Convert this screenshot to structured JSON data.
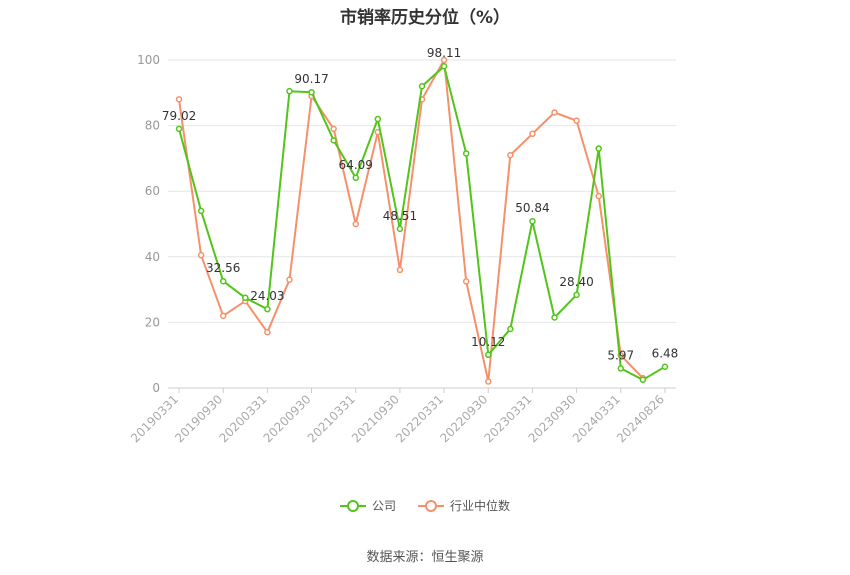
{
  "title": "市销率历史分位（%）",
  "source": "数据来源：恒生聚源",
  "colors": {
    "company": "#52c41a",
    "industry": "#f5916a",
    "grid": "#e6e6e6",
    "axis": "#999999"
  },
  "chart_data": {
    "type": "line",
    "title": "市销率历史分位（%）",
    "ylim": [
      0,
      100
    ],
    "yticks": [
      0,
      20,
      40,
      60,
      80,
      100
    ],
    "grid": true,
    "legend_position": "bottom",
    "x_tick_labels": [
      "20190331",
      "20190930",
      "20200331",
      "20200930",
      "20210331",
      "20210930",
      "20220331",
      "20220930",
      "20230331",
      "20230930",
      "20240331",
      "20240826"
    ],
    "x": [
      "20190331",
      "20190630",
      "20190930",
      "20191231",
      "20200331",
      "20200630",
      "20200930",
      "20201231",
      "20210331",
      "20210630",
      "20210930",
      "20211231",
      "20220331",
      "20220630",
      "20220930",
      "20221231",
      "20230331",
      "20230630",
      "20230930",
      "20231231",
      "20240331",
      "20240630",
      "20240826"
    ],
    "series": [
      {
        "name": "公司",
        "values": [
          79.02,
          54.0,
          32.56,
          27.5,
          24.03,
          90.5,
          90.17,
          75.5,
          64.09,
          82.0,
          48.51,
          92.0,
          98.11,
          71.5,
          10.12,
          18.0,
          50.84,
          21.5,
          28.4,
          73.0,
          5.97,
          2.5,
          6.48
        ],
        "labels": [
          "79.02",
          "",
          "32.56",
          "",
          "24.03",
          "",
          "90.17",
          "",
          "64.09",
          "",
          "48.51",
          "",
          "98.11",
          "",
          "10.12",
          "",
          "50.84",
          "",
          "28.40",
          "",
          "5.97",
          "",
          "6.48"
        ]
      },
      {
        "name": "行业中位数",
        "values": [
          88.0,
          40.5,
          22.0,
          26.5,
          17.0,
          33.0,
          89.0,
          79.0,
          50.0,
          78.0,
          36.0,
          88.0,
          100.0,
          32.5,
          2.0,
          71.0,
          77.5,
          84.0,
          81.5,
          58.5,
          10.0,
          3.0,
          null
        ]
      }
    ]
  }
}
